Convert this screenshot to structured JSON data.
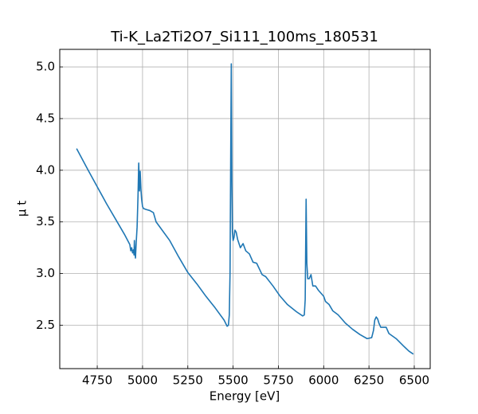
{
  "chart_data": {
    "type": "line",
    "title": "Ti-K_La2Ti2O7_Si111_100ms_180531",
    "x_label": "Energy [eV]",
    "y_label": "μ t",
    "series": [
      {
        "name": "Ti-K_La2Ti2O7_Si111_100ms_180531",
        "color": "#1f77b4",
        "x": [
          4636,
          4700,
          4750,
          4800,
          4850,
          4900,
          4930,
          4935,
          4940,
          4945,
          4950,
          4953,
          4955,
          4958,
          4961,
          4965,
          4970,
          4975,
          4979,
          4983,
          4987,
          4991,
          4995,
          5000,
          5005,
          5020,
          5040,
          5060,
          5075,
          5100,
          5150,
          5200,
          5250,
          5300,
          5350,
          5400,
          5450,
          5467,
          5474,
          5479,
          5483,
          5487,
          5490,
          5493,
          5496,
          5500,
          5505,
          5510,
          5517,
          5525,
          5540,
          5555,
          5570,
          5590,
          5610,
          5630,
          5660,
          5680,
          5720,
          5760,
          5800,
          5850,
          5884,
          5893,
          5898,
          5903,
          5907,
          5912,
          5920,
          5930,
          5940,
          5955,
          5970,
          5985,
          6000,
          6010,
          6030,
          6050,
          6080,
          6120,
          6160,
          6200,
          6240,
          6265,
          6275,
          6282,
          6290,
          6298,
          6305,
          6315,
          6330,
          6345,
          6360,
          6400,
          6440,
          6470,
          6495
        ],
        "values": [
          4.21,
          4.0,
          3.84,
          3.68,
          3.53,
          3.38,
          3.28,
          3.22,
          3.25,
          3.2,
          3.23,
          3.18,
          3.32,
          3.2,
          3.15,
          3.3,
          3.45,
          3.75,
          4.07,
          3.8,
          3.99,
          3.82,
          3.72,
          3.65,
          3.63,
          3.62,
          3.61,
          3.59,
          3.5,
          3.44,
          3.32,
          3.16,
          3.01,
          2.9,
          2.78,
          2.67,
          2.55,
          2.49,
          2.5,
          2.6,
          3.0,
          4.2,
          5.03,
          3.9,
          3.4,
          3.32,
          3.35,
          3.42,
          3.4,
          3.33,
          3.25,
          3.29,
          3.22,
          3.19,
          3.11,
          3.1,
          2.99,
          2.97,
          2.88,
          2.78,
          2.7,
          2.63,
          2.59,
          2.6,
          2.75,
          3.72,
          3.1,
          2.95,
          2.95,
          2.99,
          2.88,
          2.88,
          2.84,
          2.81,
          2.78,
          2.73,
          2.7,
          2.64,
          2.6,
          2.52,
          2.46,
          2.41,
          2.37,
          2.38,
          2.45,
          2.55,
          2.58,
          2.56,
          2.52,
          2.48,
          2.48,
          2.48,
          2.42,
          2.37,
          2.3,
          2.25,
          2.22
        ]
      }
    ],
    "xlim": [
      4543,
      6588
    ],
    "ylim": [
      2.08,
      5.17
    ],
    "xticks": [
      4750,
      5000,
      5250,
      5500,
      5750,
      6000,
      6250,
      6500
    ],
    "yticks": [
      {
        "value": 2.5,
        "label": "2.5"
      },
      {
        "value": 3.0,
        "label": "3.0"
      },
      {
        "value": 3.5,
        "label": "3.5"
      },
      {
        "value": 4.0,
        "label": "4.0"
      },
      {
        "value": 4.5,
        "label": "4.5"
      },
      {
        "value": 5.0,
        "label": "5.0"
      }
    ],
    "grid": true
  }
}
